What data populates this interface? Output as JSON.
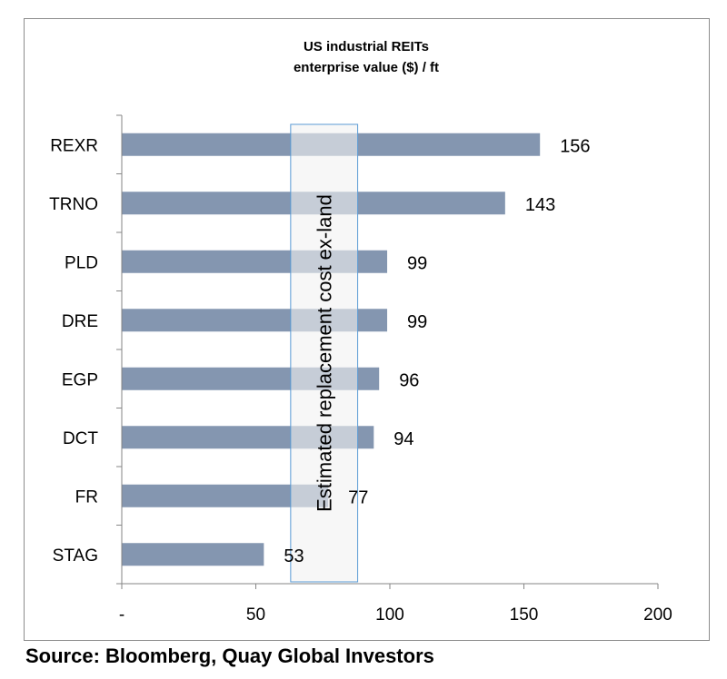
{
  "chart_data": {
    "type": "bar",
    "orientation": "horizontal",
    "title": "US industrial REITs",
    "subtitle": "enterprise value ($) / ft",
    "categories": [
      "REXR",
      "TRNO",
      "PLD",
      "DRE",
      "EGP",
      "DCT",
      "FR",
      "STAG"
    ],
    "values": [
      156,
      143,
      99,
      99,
      96,
      94,
      77,
      53
    ],
    "data_labels": [
      "156",
      "143",
      "99",
      "99",
      "96",
      "94",
      "77",
      "53"
    ],
    "xlim": [
      0,
      200
    ],
    "x_ticks": [
      0,
      50,
      100,
      150,
      200
    ],
    "x_tick_labels": [
      "-",
      "50",
      "100",
      "150",
      "200"
    ],
    "grid": false,
    "legend": "none",
    "bar_color": "#8496b0",
    "band": {
      "label": "Estimated replacement cost ex-land",
      "range": [
        63,
        88
      ],
      "fill_color": "#f2f2f2",
      "border_color": "#5b9bd5"
    }
  },
  "source": "Source: Bloomberg, Quay Global Investors"
}
